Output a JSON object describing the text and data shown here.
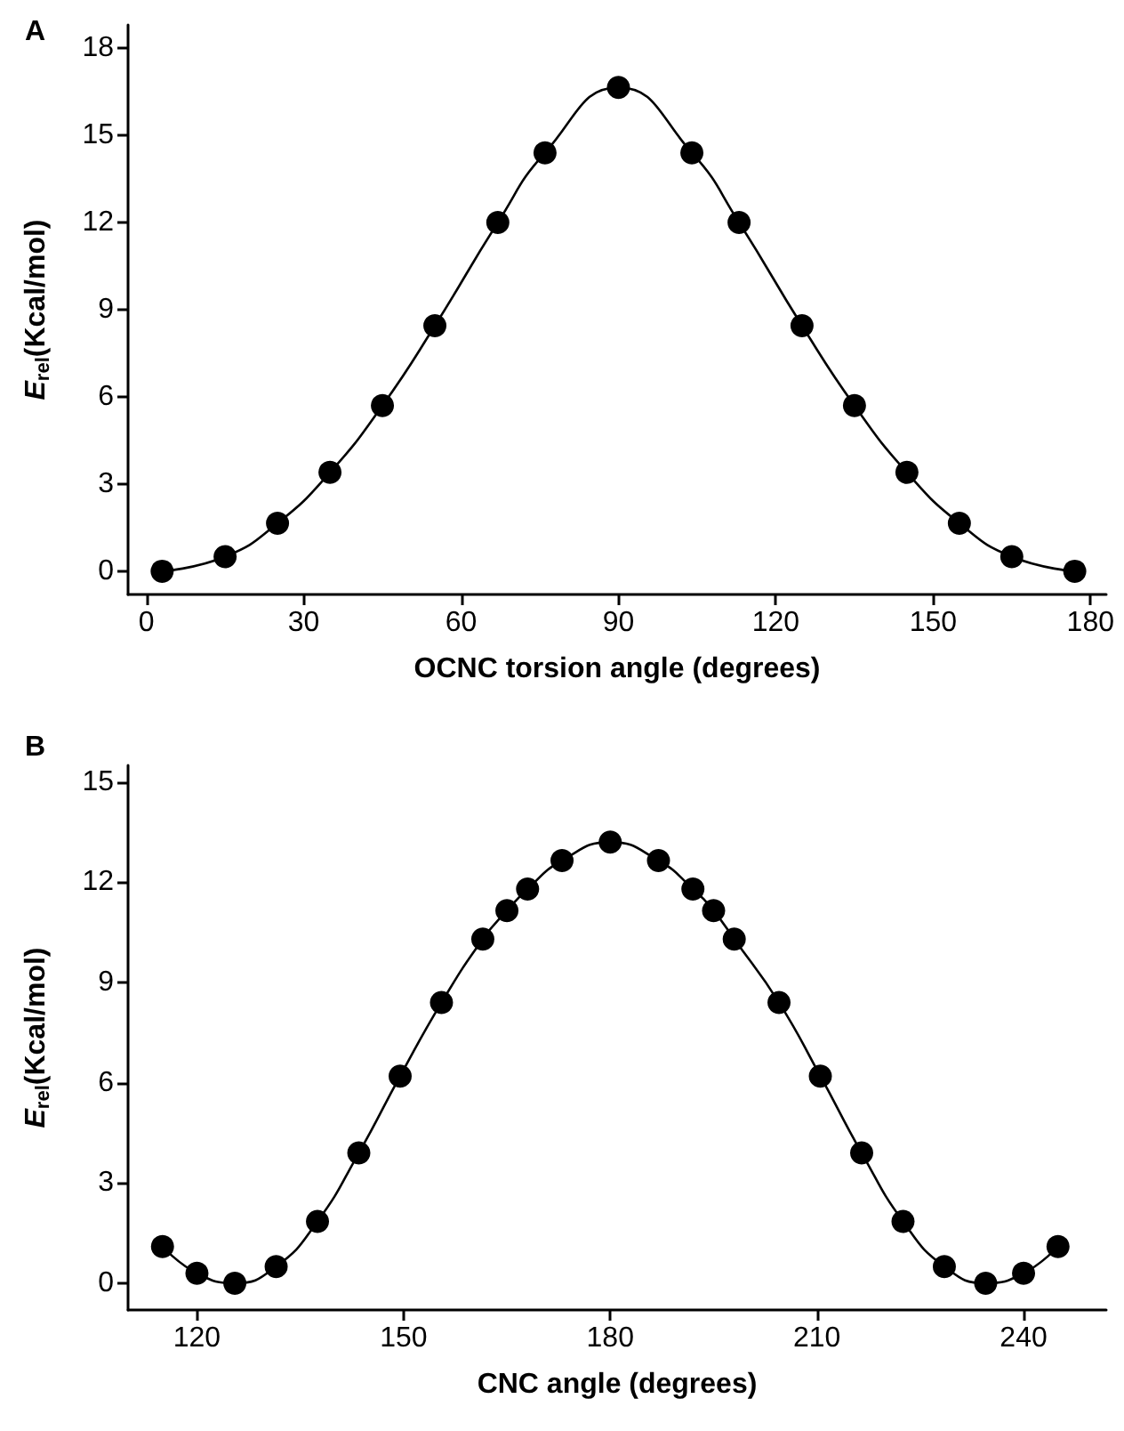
{
  "chart_data": [
    {
      "type": "line",
      "xlabel": "OCNC torsion angle (degrees)",
      "ylabel": "E$_{rel}$(Kcal/mol)",
      "annotations": [
        "A"
      ],
      "marker": "circle",
      "line_style": "solid",
      "x": [
        3,
        15,
        25,
        35,
        45,
        55,
        67,
        76,
        90,
        104,
        113,
        125,
        135,
        145,
        155,
        165,
        177
      ],
      "series": [
        {
          "color": "#000000",
          "values": [
            0,
            0.5,
            1.65,
            3.4,
            5.7,
            8.45,
            12,
            14.4,
            16.65,
            14.4,
            12,
            8.45,
            5.7,
            3.4,
            1.65,
            0.5,
            0
          ]
        }
      ],
      "xlim": [
        -3.5,
        183
      ],
      "ylim": [
        -0.8,
        18.8
      ],
      "xticks": [
        0,
        30,
        60,
        90,
        120,
        150,
        180
      ],
      "yticks": [
        0,
        3,
        6,
        9,
        12,
        15,
        18
      ]
    },
    {
      "type": "line",
      "xlabel": "CNC angle (degrees)",
      "ylabel": "E$_{rel}$(Kcal/mol)",
      "annotations": [
        "B"
      ],
      "marker": "circle",
      "line_style": "solid",
      "x": [
        115,
        120,
        125.5,
        131.5,
        137.5,
        143.5,
        149.5,
        155.5,
        161.5,
        165,
        168,
        173,
        180,
        187,
        192,
        195,
        198,
        204.5,
        210.5,
        216.5,
        222.5,
        228.5,
        234.5,
        240,
        245
      ],
      "series": [
        {
          "color": "#000000",
          "values": [
            1.1,
            0.3,
            0,
            0.5,
            1.85,
            3.9,
            6.2,
            8.4,
            10.3,
            11.15,
            11.8,
            12.65,
            13.2,
            12.65,
            11.8,
            11.15,
            10.3,
            8.4,
            6.2,
            3.9,
            1.85,
            0.5,
            0,
            0.3,
            1.1
          ]
        }
      ],
      "xlim": [
        110,
        252
      ],
      "ylim": [
        -0.8,
        15.5
      ],
      "xticks": [
        120,
        150,
        180,
        210,
        240
      ],
      "yticks": [
        0,
        3,
        6,
        9,
        12,
        15
      ]
    }
  ]
}
